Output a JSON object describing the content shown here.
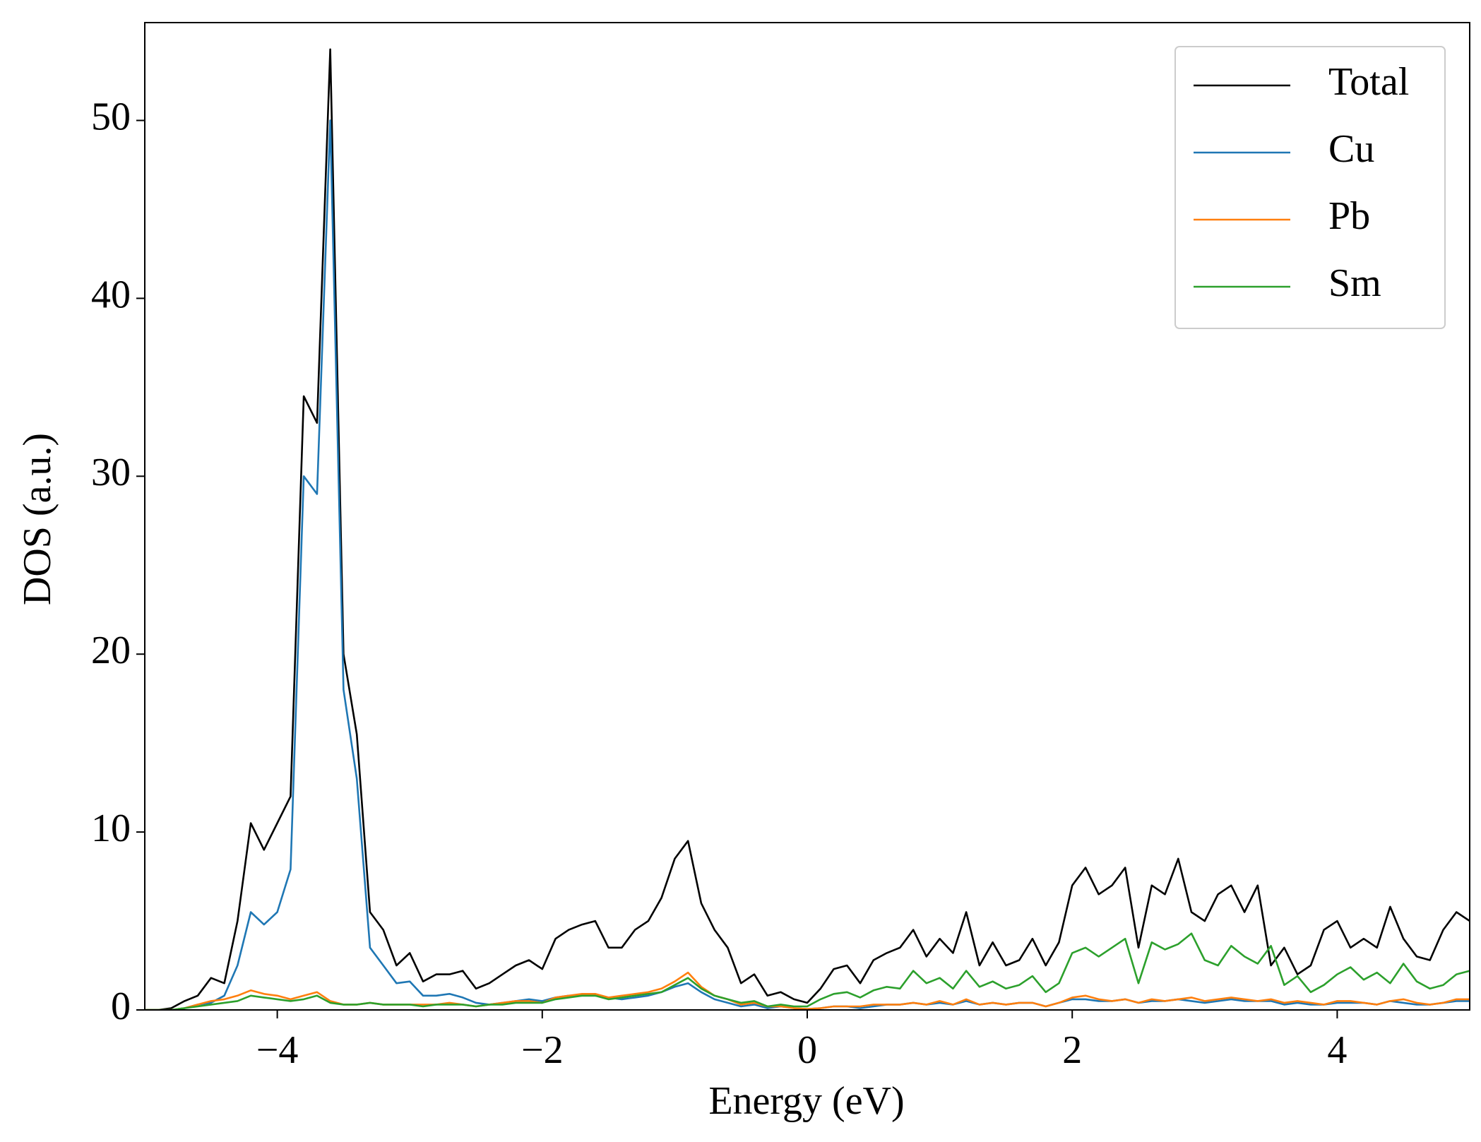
{
  "chart_data": {
    "type": "line",
    "xlabel": "Energy (eV)",
    "ylabel": "DOS (a.u.)",
    "x": [
      -5.0,
      -4.9,
      -4.8,
      -4.7,
      -4.6,
      -4.5,
      -4.4,
      -4.3,
      -4.2,
      -4.1,
      -4.0,
      -3.9,
      -3.8,
      -3.7,
      -3.6,
      -3.5,
      -3.4,
      -3.3,
      -3.2,
      -3.1,
      -3.0,
      -2.9,
      -2.8,
      -2.7,
      -2.6,
      -2.5,
      -2.4,
      -2.3,
      -2.2,
      -2.1,
      -2.0,
      -1.9,
      -1.8,
      -1.7,
      -1.6,
      -1.5,
      -1.4,
      -1.3,
      -1.2,
      -1.1,
      -1.0,
      -0.9,
      -0.8,
      -0.7,
      -0.6,
      -0.5,
      -0.4,
      -0.3,
      -0.2,
      -0.1,
      0.0,
      0.1,
      0.2,
      0.3,
      0.4,
      0.5,
      0.6,
      0.7,
      0.8,
      0.9,
      1.0,
      1.1,
      1.2,
      1.3,
      1.4,
      1.5,
      1.6,
      1.7,
      1.8,
      1.9,
      2.0,
      2.1,
      2.2,
      2.3,
      2.4,
      2.5,
      2.6,
      2.7,
      2.8,
      2.9,
      3.0,
      3.1,
      3.2,
      3.3,
      3.4,
      3.5,
      3.6,
      3.7,
      3.8,
      3.9,
      4.0,
      4.1,
      4.2,
      4.3,
      4.4,
      4.5,
      4.6,
      4.7,
      4.8,
      4.9,
      5.0
    ],
    "series": [
      {
        "name": "Total",
        "color": "#000000",
        "values": [
          0,
          0,
          0.1,
          0.5,
          0.8,
          1.8,
          1.5,
          5.0,
          10.5,
          9.0,
          10.5,
          12,
          34.5,
          33,
          54,
          20,
          15.5,
          5.5,
          4.5,
          2.5,
          3.2,
          1.6,
          2.0,
          2.0,
          2.2,
          1.2,
          1.5,
          2.0,
          2.5,
          2.8,
          2.3,
          4.0,
          4.5,
          4.8,
          5.0,
          3.5,
          3.5,
          4.5,
          5.0,
          6.3,
          8.5,
          9.5,
          6.0,
          4.5,
          3.5,
          1.5,
          2.0,
          0.8,
          1.0,
          0.6,
          0.4,
          1.2,
          2.3,
          2.5,
          1.5,
          2.8,
          3.2,
          3.5,
          4.5,
          3.0,
          4.0,
          3.2,
          5.5,
          2.5,
          3.8,
          2.5,
          2.8,
          4.0,
          2.5,
          3.8,
          7.0,
          8.0,
          6.5,
          7.0,
          8.0,
          3.5,
          7.0,
          6.5,
          8.5,
          5.5,
          5.0,
          6.5,
          7.0,
          5.5,
          7.0,
          2.5,
          3.5,
          2.0,
          2.5,
          4.5,
          5.0,
          3.5,
          4.0,
          3.5,
          5.8,
          4.0,
          3.0,
          2.8,
          4.5,
          5.5,
          5.0
        ]
      },
      {
        "name": "Cu",
        "color": "#1f77b4",
        "values": [
          0,
          0,
          0,
          0.1,
          0.3,
          0.4,
          0.8,
          2.5,
          5.5,
          4.8,
          5.5,
          7.9,
          30,
          29,
          50,
          18,
          13,
          3.5,
          2.5,
          1.5,
          1.6,
          0.8,
          0.8,
          0.9,
          0.7,
          0.4,
          0.3,
          0.4,
          0.5,
          0.6,
          0.5,
          0.7,
          0.8,
          0.8,
          0.8,
          0.7,
          0.6,
          0.7,
          0.8,
          1.0,
          1.3,
          1.5,
          1.0,
          0.6,
          0.4,
          0.2,
          0.3,
          0.1,
          0.2,
          0.1,
          0.05,
          0.1,
          0.2,
          0.2,
          0.1,
          0.2,
          0.3,
          0.3,
          0.4,
          0.3,
          0.4,
          0.3,
          0.5,
          0.3,
          0.4,
          0.3,
          0.4,
          0.4,
          0.2,
          0.4,
          0.6,
          0.6,
          0.5,
          0.5,
          0.6,
          0.4,
          0.5,
          0.5,
          0.6,
          0.5,
          0.4,
          0.5,
          0.6,
          0.5,
          0.5,
          0.5,
          0.3,
          0.4,
          0.3,
          0.3,
          0.4,
          0.4,
          0.4,
          0.3,
          0.5,
          0.4,
          0.3,
          0.3,
          0.4,
          0.5,
          0.5
        ]
      },
      {
        "name": "Pb",
        "color": "#ff7f0e",
        "values": [
          0,
          0,
          0,
          0.1,
          0.3,
          0.5,
          0.6,
          0.8,
          1.1,
          0.9,
          0.8,
          0.6,
          0.8,
          1.0,
          0.5,
          0.3,
          0.3,
          0.4,
          0.3,
          0.3,
          0.3,
          0.3,
          0.3,
          0.4,
          0.3,
          0.2,
          0.3,
          0.4,
          0.5,
          0.5,
          0.4,
          0.7,
          0.8,
          0.9,
          0.9,
          0.7,
          0.8,
          0.9,
          1.0,
          1.2,
          1.6,
          2.1,
          1.3,
          0.8,
          0.6,
          0.3,
          0.4,
          0.2,
          0.2,
          0.1,
          0.05,
          0.1,
          0.2,
          0.2,
          0.2,
          0.3,
          0.3,
          0.3,
          0.4,
          0.3,
          0.5,
          0.3,
          0.6,
          0.3,
          0.4,
          0.3,
          0.4,
          0.4,
          0.2,
          0.4,
          0.7,
          0.8,
          0.6,
          0.5,
          0.6,
          0.4,
          0.6,
          0.5,
          0.6,
          0.7,
          0.5,
          0.6,
          0.7,
          0.6,
          0.5,
          0.6,
          0.4,
          0.5,
          0.4,
          0.3,
          0.5,
          0.5,
          0.4,
          0.3,
          0.5,
          0.6,
          0.4,
          0.3,
          0.4,
          0.6,
          0.6
        ]
      },
      {
        "name": "Sm",
        "color": "#2ca02c",
        "values": [
          0,
          0,
          0,
          0.1,
          0.2,
          0.3,
          0.4,
          0.5,
          0.8,
          0.7,
          0.6,
          0.5,
          0.6,
          0.8,
          0.4,
          0.3,
          0.3,
          0.4,
          0.3,
          0.3,
          0.3,
          0.2,
          0.3,
          0.3,
          0.3,
          0.2,
          0.3,
          0.3,
          0.4,
          0.4,
          0.4,
          0.6,
          0.7,
          0.8,
          0.8,
          0.6,
          0.7,
          0.8,
          0.9,
          1.0,
          1.4,
          1.8,
          1.2,
          0.8,
          0.6,
          0.4,
          0.5,
          0.2,
          0.3,
          0.2,
          0.2,
          0.6,
          0.9,
          1.0,
          0.7,
          1.1,
          1.3,
          1.2,
          2.2,
          1.5,
          1.8,
          1.2,
          2.2,
          1.3,
          1.6,
          1.2,
          1.4,
          1.9,
          1.0,
          1.5,
          3.2,
          3.5,
          3.0,
          3.5,
          4.0,
          1.5,
          3.8,
          3.4,
          3.7,
          4.3,
          2.8,
          2.5,
          3.6,
          3.0,
          2.6,
          3.6,
          1.4,
          1.9,
          1.0,
          1.4,
          2.0,
          2.4,
          1.7,
          2.1,
          1.5,
          2.6,
          1.6,
          1.2,
          1.4,
          2.0,
          2.2
        ]
      }
    ],
    "xlim": [
      -5,
      5
    ],
    "ylim": [
      0,
      55.5
    ],
    "xticks": [
      {
        "value": -4,
        "label": "−4"
      },
      {
        "value": -2,
        "label": "−2"
      },
      0,
      2,
      4
    ],
    "yticks": [
      0,
      10,
      20,
      30,
      40,
      50
    ],
    "grid": false,
    "legend": "upper right"
  }
}
